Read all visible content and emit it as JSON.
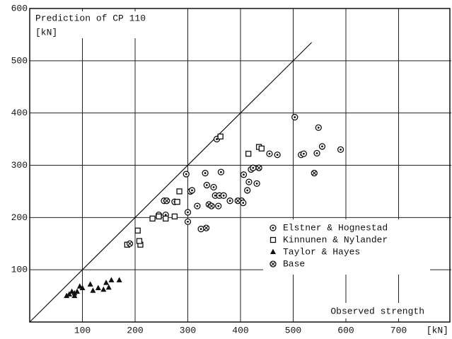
{
  "chart_data": {
    "type": "scatter",
    "title": "Prediction of CP 110",
    "y_unit": "[kN]",
    "x_label": "Observed strength",
    "xlim": [
      0,
      800
    ],
    "ylim": [
      0,
      600
    ],
    "xticks": [
      100,
      200,
      300,
      400,
      500,
      600,
      700,
      {
        "value": 800,
        "label": "[kN]"
      }
    ],
    "yticks": [
      100,
      200,
      300,
      400,
      500,
      600
    ],
    "grid": true,
    "legend": "lower right",
    "diagonal": {
      "x": [
        0,
        535
      ],
      "y": [
        0,
        535
      ]
    },
    "series": [
      {
        "name": "Elstner & Hognestad",
        "marker": "circle-dot",
        "color": "#111",
        "x": [
          297,
          300,
          305,
          308,
          300,
          318,
          325,
          333,
          336,
          349,
          352,
          358,
          360,
          363,
          368,
          380,
          402,
          405,
          406,
          413,
          416,
          420,
          424,
          431,
          455,
          470,
          503,
          515,
          520,
          545,
          548,
          555,
          590,
          255,
          275,
          258,
          245,
          355
        ],
        "y": [
          283,
          192,
          250,
          252,
          210,
          222,
          178,
          285,
          262,
          258,
          242,
          222,
          242,
          287,
          242,
          232,
          232,
          228,
          282,
          252,
          268,
          292,
          295,
          265,
          322,
          320,
          392,
          320,
          322,
          323,
          372,
          336,
          330,
          232,
          230,
          205,
          205,
          350
        ]
      },
      {
        "name": "Kinnunen & Nylander",
        "marker": "square",
        "color": "#111",
        "x": [
          185,
          205,
          210,
          208,
          233,
          245,
          258,
          275,
          280,
          284,
          362,
          415,
          435,
          440
        ],
        "y": [
          148,
          175,
          148,
          155,
          198,
          202,
          198,
          202,
          230,
          250,
          355,
          322,
          335,
          332
        ]
      },
      {
        "name": "Taylor & Hayes",
        "marker": "triangle",
        "color": "#111",
        "x": [
          70,
          75,
          80,
          85,
          90,
          95,
          100,
          115,
          130,
          140,
          145,
          155,
          150,
          170,
          85,
          120
        ],
        "y": [
          50,
          53,
          58,
          55,
          58,
          68,
          65,
          72,
          65,
          62,
          75,
          80,
          66,
          80,
          50,
          60
        ]
      },
      {
        "name": "Base",
        "marker": "circle-x",
        "color": "#111",
        "x": [
          190,
          335,
          340,
          345,
          260,
          540,
          395,
          435
        ],
        "y": [
          150,
          180,
          225,
          222,
          232,
          285,
          232,
          295
        ]
      }
    ]
  }
}
